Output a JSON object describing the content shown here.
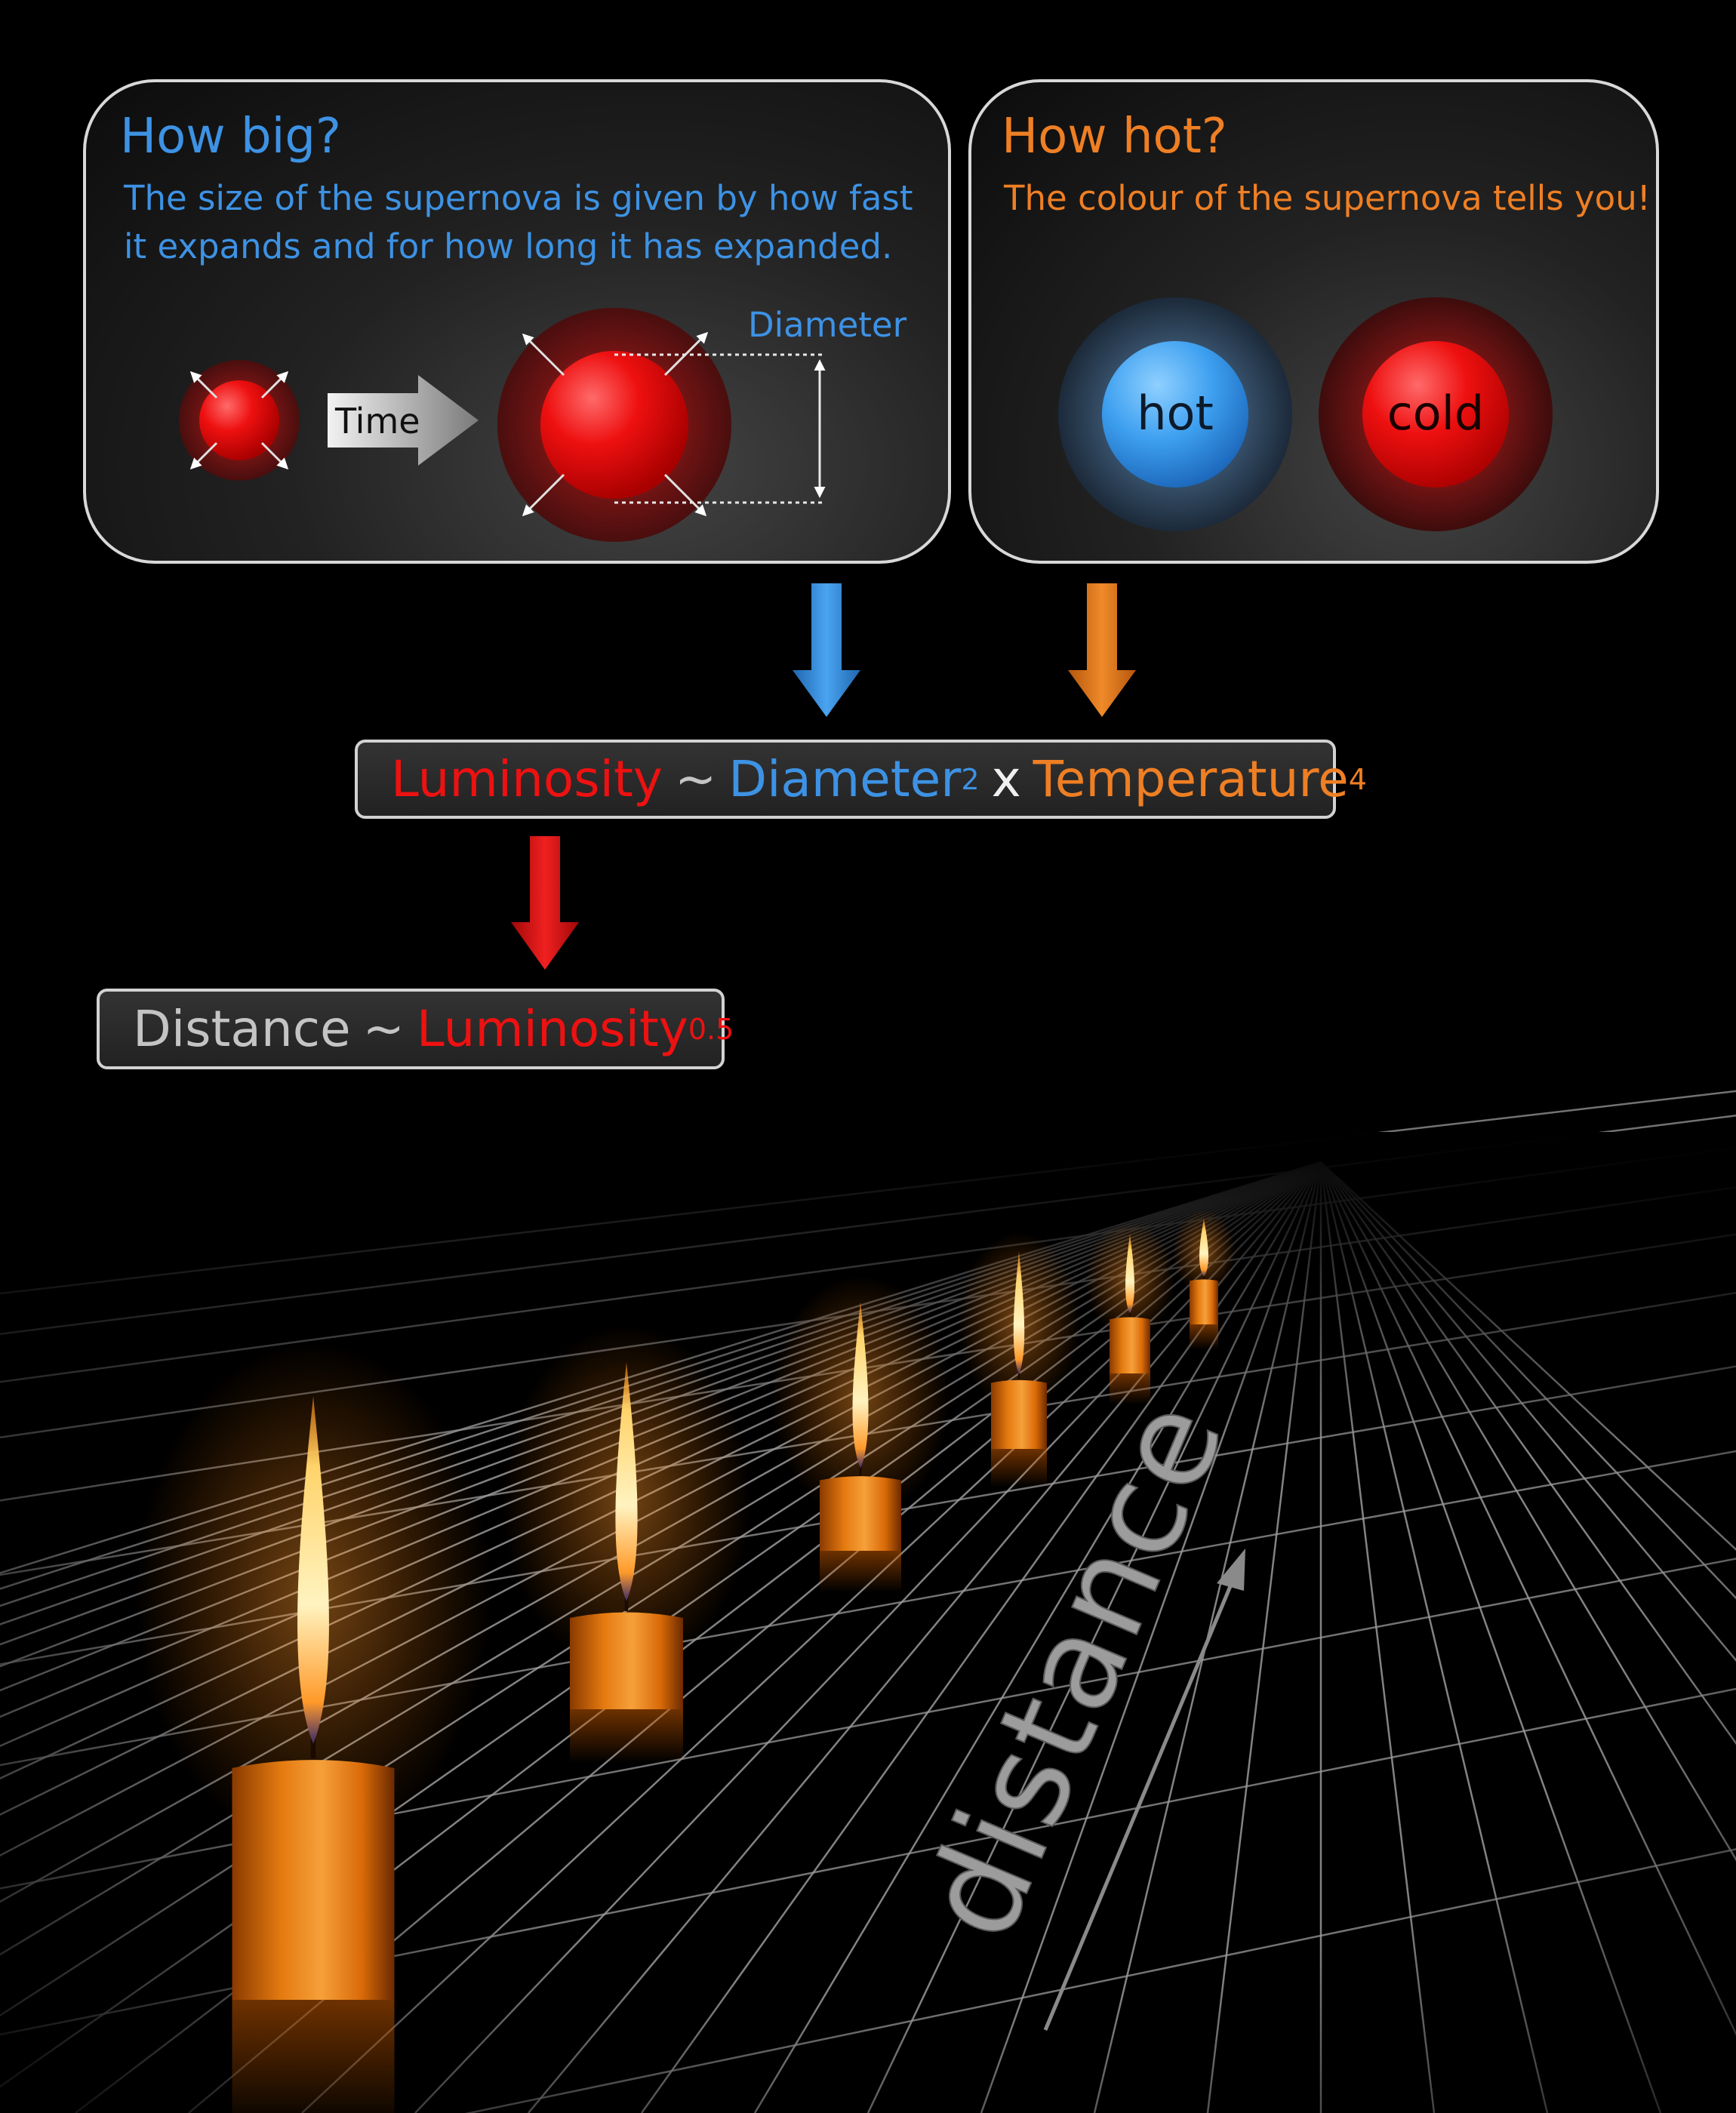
{
  "how_big": {
    "title": "How big?",
    "line1": "The size of the supernova is given by how fast",
    "line2": "it expands and for how long it has expanded.",
    "arrow_label": "Time",
    "dimension_label": "Diameter"
  },
  "how_hot": {
    "title": "How hot?",
    "text": "The colour of the supernova tells you!",
    "hot_label": "hot",
    "cold_label": "cold"
  },
  "luminosity_formula": {
    "lhs": "Luminosity",
    "op1": "~",
    "term1": "Diameter",
    "exp1": "2",
    "op2": "x",
    "term2": "Temperature",
    "exp2": "4"
  },
  "distance_formula": {
    "lhs": "Distance",
    "op": "~",
    "term": "Luminosity",
    "exp": "0.5"
  },
  "scene": {
    "axis_label": "distance",
    "candle_count": 7
  },
  "colors": {
    "size_accent": "#3d92e4",
    "temperature_accent": "#ef7f24",
    "luminosity_accent": "#ee1111",
    "distance_text": "#c4c4c4"
  }
}
